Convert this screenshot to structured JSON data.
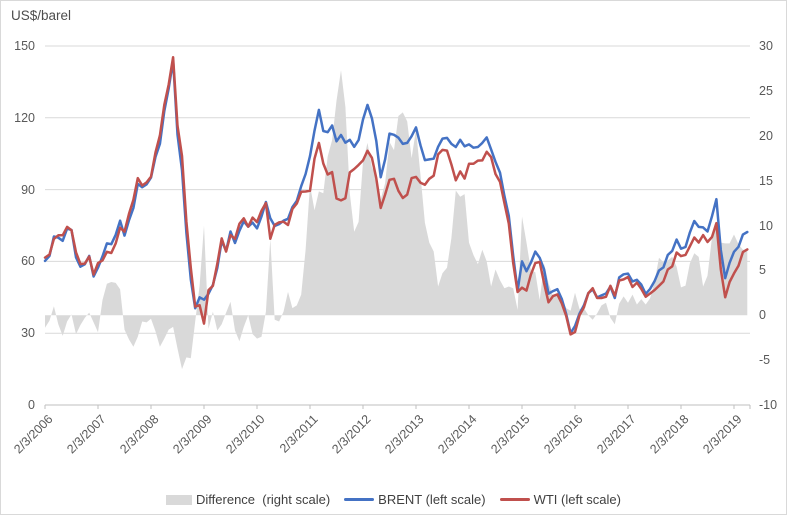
{
  "chart_data": {
    "type": "line",
    "title": "US$/barel",
    "left_axis": {
      "title": "US$/barel",
      "min": 0,
      "max": 150,
      "ticks": [
        150,
        120,
        90,
        60,
        30,
        0
      ]
    },
    "right_axis": {
      "min": -10,
      "max": 30,
      "ticks": [
        30,
        25,
        20,
        15,
        10,
        5,
        0,
        -5,
        -10
      ]
    },
    "x_tick_labels": [
      "2/3/2006",
      "2/3/2007",
      "2/3/2008",
      "2/3/2009",
      "2/3/2010",
      "2/3/2011",
      "2/3/2012",
      "2/3/2013",
      "2/3/2014",
      "2/3/2015",
      "2/3/2016",
      "2/3/2017",
      "2/3/2018",
      "2/3/2019"
    ],
    "grid": "horizontal",
    "legend_position": "bottom",
    "series": [
      {
        "name": "Difference  (right scale)",
        "type": "area",
        "axis": "right",
        "color": "#D9D9D9"
      },
      {
        "name": "BRENT (left scale)",
        "type": "line",
        "axis": "left",
        "color": "#4472C4"
      },
      {
        "name": "WTI (left scale)",
        "type": "line",
        "axis": "left",
        "color": "#C0504D"
      }
    ],
    "columns": [
      "date_decimal_year",
      "brent_usd",
      "wti_usd",
      "difference_usd"
    ],
    "rows": [
      [
        2006.083,
        60.2,
        61.6,
        -1.4
      ],
      [
        2006.167,
        62.3,
        62.9,
        -0.6
      ],
      [
        2006.25,
        70.4,
        69.4,
        1.0
      ],
      [
        2006.333,
        69.9,
        70.9,
        -1.0
      ],
      [
        2006.417,
        68.6,
        70.9,
        -2.3
      ],
      [
        2006.5,
        73.7,
        74.4,
        -0.7
      ],
      [
        2006.583,
        73.1,
        73.0,
        0.1
      ],
      [
        2006.667,
        61.7,
        63.8,
        -2.1
      ],
      [
        2006.75,
        57.8,
        58.9,
        -1.1
      ],
      [
        2006.833,
        58.8,
        59.1,
        -0.3
      ],
      [
        2006.917,
        62.3,
        62.0,
        0.3
      ],
      [
        2007.0,
        53.7,
        54.5,
        -0.8
      ],
      [
        2007.083,
        57.4,
        59.3,
        -1.9
      ],
      [
        2007.167,
        62.1,
        60.4,
        1.7
      ],
      [
        2007.25,
        67.5,
        64.0,
        3.5
      ],
      [
        2007.333,
        67.2,
        63.5,
        3.7
      ],
      [
        2007.417,
        71.1,
        67.5,
        3.6
      ],
      [
        2007.5,
        77.0,
        74.1,
        2.9
      ],
      [
        2007.583,
        70.8,
        72.4,
        -1.6
      ],
      [
        2007.667,
        77.2,
        79.9,
        -2.7
      ],
      [
        2007.75,
        82.3,
        85.8,
        -3.5
      ],
      [
        2007.833,
        92.4,
        94.8,
        -2.4
      ],
      [
        2007.917,
        91.0,
        91.7,
        -0.7
      ],
      [
        2008.0,
        92.2,
        93.0,
        -0.8
      ],
      [
        2008.083,
        95.0,
        95.4,
        -0.4
      ],
      [
        2008.167,
        103.7,
        105.5,
        -1.8
      ],
      [
        2008.25,
        109.1,
        112.6,
        -3.5
      ],
      [
        2008.333,
        122.8,
        125.4,
        -2.6
      ],
      [
        2008.417,
        132.3,
        133.9,
        -1.6
      ],
      [
        2008.5,
        144.0,
        145.3,
        -1.3
      ],
      [
        2008.583,
        113.0,
        116.7,
        -3.7
      ],
      [
        2008.667,
        98.1,
        104.1,
        -6.0
      ],
      [
        2008.75,
        71.9,
        76.6,
        -4.7
      ],
      [
        2008.833,
        52.5,
        57.3,
        -4.8
      ],
      [
        2008.917,
        40.4,
        41.1,
        -0.7
      ],
      [
        2009.0,
        45.0,
        41.7,
        3.3
      ],
      [
        2009.083,
        44.0,
        34.0,
        10.0
      ],
      [
        2009.167,
        46.5,
        48.0,
        -1.5
      ],
      [
        2009.25,
        50.2,
        49.8,
        0.4
      ],
      [
        2009.333,
        57.3,
        59.0,
        -1.7
      ],
      [
        2009.417,
        68.6,
        69.6,
        -1.0
      ],
      [
        2009.5,
        64.4,
        64.1,
        0.3
      ],
      [
        2009.583,
        72.5,
        71.0,
        1.5
      ],
      [
        2009.667,
        67.7,
        69.4,
        -1.7
      ],
      [
        2009.75,
        72.8,
        75.7,
        -2.9
      ],
      [
        2009.833,
        76.7,
        78.0,
        -1.3
      ],
      [
        2009.917,
        74.5,
        74.5,
        0.0
      ],
      [
        2010.0,
        76.2,
        78.3,
        -2.1
      ],
      [
        2010.083,
        73.8,
        76.4,
        -2.6
      ],
      [
        2010.167,
        78.8,
        81.2,
        -2.4
      ],
      [
        2010.25,
        84.8,
        84.4,
        0.4
      ],
      [
        2010.333,
        78.0,
        69.5,
        8.5
      ],
      [
        2010.417,
        74.8,
        75.3,
        -0.5
      ],
      [
        2010.5,
        75.6,
        76.3,
        -0.7
      ],
      [
        2010.583,
        77.0,
        76.6,
        0.4
      ],
      [
        2010.667,
        77.8,
        75.2,
        2.6
      ],
      [
        2010.75,
        82.7,
        81.9,
        0.8
      ],
      [
        2010.833,
        85.3,
        84.2,
        1.1
      ],
      [
        2010.917,
        91.4,
        89.1,
        2.3
      ],
      [
        2011.0,
        96.5,
        89.2,
        7.3
      ],
      [
        2011.083,
        104.0,
        89.5,
        14.5
      ],
      [
        2011.167,
        114.6,
        102.9,
        11.7
      ],
      [
        2011.25,
        123.3,
        109.5,
        13.8
      ],
      [
        2011.333,
        114.5,
        100.9,
        13.6
      ],
      [
        2011.417,
        114.0,
        96.3,
        17.7
      ],
      [
        2011.5,
        116.8,
        97.3,
        19.5
      ],
      [
        2011.583,
        110.2,
        86.3,
        23.9
      ],
      [
        2011.667,
        112.8,
        85.5,
        27.3
      ],
      [
        2011.75,
        109.6,
        86.4,
        23.2
      ],
      [
        2011.833,
        110.8,
        97.2,
        13.6
      ],
      [
        2011.917,
        107.9,
        98.6,
        9.3
      ],
      [
        2012.0,
        110.7,
        100.3,
        10.4
      ],
      [
        2012.083,
        119.3,
        102.2,
        17.1
      ],
      [
        2012.167,
        125.4,
        106.2,
        19.2
      ],
      [
        2012.25,
        119.8,
        103.3,
        16.5
      ],
      [
        2012.333,
        110.3,
        94.7,
        15.6
      ],
      [
        2012.417,
        95.2,
        82.3,
        12.9
      ],
      [
        2012.5,
        102.6,
        87.9,
        14.7
      ],
      [
        2012.583,
        113.4,
        94.1,
        19.3
      ],
      [
        2012.667,
        112.9,
        94.5,
        18.4
      ],
      [
        2012.75,
        111.7,
        89.5,
        22.2
      ],
      [
        2012.833,
        109.1,
        86.5,
        22.6
      ],
      [
        2012.917,
        109.5,
        87.9,
        21.6
      ],
      [
        2013.0,
        112.3,
        94.8,
        17.5
      ],
      [
        2013.083,
        116.0,
        95.3,
        20.7
      ],
      [
        2013.167,
        108.5,
        92.9,
        15.6
      ],
      [
        2013.25,
        102.3,
        92.0,
        10.3
      ],
      [
        2013.333,
        102.6,
        94.5,
        8.1
      ],
      [
        2013.417,
        102.9,
        95.8,
        7.1
      ],
      [
        2013.5,
        107.9,
        104.7,
        3.2
      ],
      [
        2013.583,
        111.3,
        106.6,
        4.7
      ],
      [
        2013.667,
        111.6,
        106.3,
        5.3
      ],
      [
        2013.75,
        109.1,
        100.5,
        8.6
      ],
      [
        2013.833,
        107.8,
        93.9,
        13.9
      ],
      [
        2013.917,
        110.8,
        97.6,
        13.2
      ],
      [
        2014.0,
        108.1,
        94.6,
        13.5
      ],
      [
        2014.083,
        108.9,
        100.8,
        8.1
      ],
      [
        2014.167,
        107.5,
        100.8,
        6.7
      ],
      [
        2014.25,
        107.8,
        102.1,
        5.7
      ],
      [
        2014.333,
        109.5,
        102.2,
        7.3
      ],
      [
        2014.417,
        111.8,
        105.8,
        6.0
      ],
      [
        2014.5,
        106.8,
        103.6,
        3.2
      ],
      [
        2014.583,
        101.6,
        96.5,
        5.1
      ],
      [
        2014.667,
        97.1,
        93.2,
        3.9
      ],
      [
        2014.75,
        87.4,
        84.4,
        3.0
      ],
      [
        2014.833,
        79.0,
        75.8,
        3.2
      ],
      [
        2014.917,
        62.3,
        59.3,
        3.0
      ],
      [
        2015.0,
        47.8,
        47.2,
        0.6
      ],
      [
        2015.083,
        60.0,
        49.0,
        11.0
      ],
      [
        2015.167,
        55.9,
        47.8,
        8.1
      ],
      [
        2015.25,
        59.5,
        54.5,
        5.0
      ],
      [
        2015.333,
        64.1,
        59.3,
        4.8
      ],
      [
        2015.417,
        61.5,
        59.8,
        1.7
      ],
      [
        2015.5,
        56.6,
        50.9,
        5.7
      ],
      [
        2015.583,
        46.5,
        42.9,
        3.6
      ],
      [
        2015.667,
        47.6,
        45.5,
        2.1
      ],
      [
        2015.75,
        48.4,
        46.2,
        2.2
      ],
      [
        2015.833,
        44.3,
        42.4,
        1.9
      ],
      [
        2015.917,
        38.0,
        37.2,
        0.8
      ],
      [
        2016.0,
        30.0,
        29.5,
        0.5
      ],
      [
        2016.083,
        33.0,
        30.5,
        2.5
      ],
      [
        2016.167,
        38.2,
        37.5,
        0.7
      ],
      [
        2016.25,
        41.6,
        40.8,
        0.8
      ],
      [
        2016.333,
        46.7,
        46.7,
        0.0
      ],
      [
        2016.417,
        48.3,
        48.8,
        -0.5
      ],
      [
        2016.5,
        44.9,
        44.7,
        0.2
      ],
      [
        2016.583,
        45.8,
        44.7,
        1.1
      ],
      [
        2016.667,
        46.6,
        45.2,
        1.4
      ],
      [
        2016.75,
        49.5,
        49.8,
        -0.3
      ],
      [
        2016.833,
        44.7,
        45.7,
        -1.0
      ],
      [
        2016.917,
        53.3,
        52.0,
        1.3
      ],
      [
        2017.0,
        54.6,
        52.5,
        2.1
      ],
      [
        2017.083,
        54.9,
        53.5,
        1.4
      ],
      [
        2017.167,
        51.6,
        49.3,
        2.3
      ],
      [
        2017.25,
        52.3,
        51.1,
        1.2
      ],
      [
        2017.333,
        50.3,
        48.5,
        1.8
      ],
      [
        2017.417,
        46.4,
        45.2,
        1.2
      ],
      [
        2017.5,
        48.5,
        46.6,
        1.9
      ],
      [
        2017.583,
        51.7,
        48.0,
        3.7
      ],
      [
        2017.667,
        56.2,
        49.8,
        6.4
      ],
      [
        2017.75,
        57.5,
        51.6,
        5.9
      ],
      [
        2017.833,
        62.7,
        56.6,
        6.1
      ],
      [
        2017.917,
        64.4,
        57.9,
        6.5
      ],
      [
        2018.0,
        69.1,
        63.7,
        5.4
      ],
      [
        2018.083,
        65.3,
        62.2,
        3.1
      ],
      [
        2018.167,
        66.0,
        62.7,
        3.3
      ],
      [
        2018.25,
        72.1,
        66.3,
        5.8
      ],
      [
        2018.333,
        76.9,
        70.0,
        6.9
      ],
      [
        2018.417,
        74.4,
        67.9,
        6.5
      ],
      [
        2018.5,
        74.2,
        71.0,
        3.2
      ],
      [
        2018.583,
        72.5,
        68.1,
        4.4
      ],
      [
        2018.667,
        78.9,
        70.2,
        8.7
      ],
      [
        2018.75,
        86.0,
        76.0,
        10.0
      ],
      [
        2018.833,
        64.8,
        56.7,
        8.1
      ],
      [
        2018.917,
        53.0,
        45.0,
        8.0
      ],
      [
        2019.0,
        59.4,
        51.4,
        8.0
      ],
      [
        2019.083,
        64.0,
        55.0,
        9.0
      ],
      [
        2019.167,
        66.1,
        58.2,
        7.9
      ],
      [
        2019.25,
        71.2,
        63.9,
        7.3
      ],
      [
        2019.333,
        72.3,
        65.0,
        7.3
      ]
    ]
  },
  "colors": {
    "gridline": "#D9D9D9",
    "axis_line": "#BFBFBF",
    "tick_label": "#595959",
    "legend_text": "#404040",
    "background": "#FFFFFF",
    "border": "#D9D9D9"
  }
}
